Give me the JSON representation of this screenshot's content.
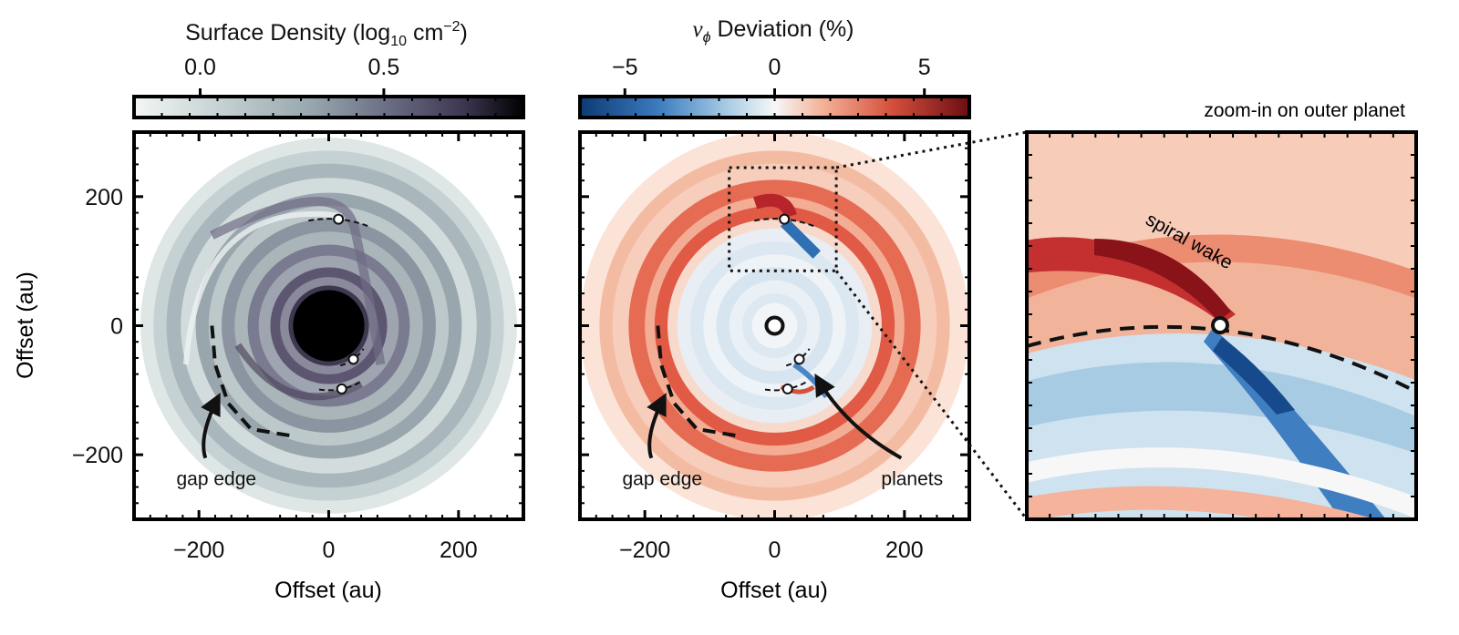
{
  "chart_data": [
    {
      "type": "heatmap",
      "panel": "surface-density",
      "colorbar": {
        "label_main": "Surface Density (log",
        "label_sub": "10",
        "label_unit": " cm",
        "label_exp": "−2",
        "label_close": ")",
        "ticks": [
          {
            "value": 0.0,
            "label": "0.0"
          },
          {
            "value": 0.5,
            "label": "0.5"
          }
        ],
        "range": [
          -0.18,
          0.88
        ],
        "colormap": "bone_r",
        "colors": [
          "#f3f6f5",
          "#c9d5d6",
          "#98a8ae",
          "#6b6e86",
          "#3c3550",
          "#000000"
        ]
      },
      "xlabel": "Offset (au)",
      "ylabel": "Offset (au)",
      "xlim": [
        -300,
        300
      ],
      "ylim": [
        -300,
        300
      ],
      "xticks": [
        {
          "value": -200,
          "label": "−200"
        },
        {
          "value": 0,
          "label": "0"
        },
        {
          "value": 200,
          "label": "200"
        }
      ],
      "yticks": [
        {
          "value": 200,
          "label": "200"
        },
        {
          "value": 0,
          "label": "0"
        },
        {
          "value": -200,
          "label": "−200"
        }
      ],
      "disk_outer_radius_au": 290,
      "central_hole_radius_au": 55,
      "planets": [
        {
          "x": 15,
          "y": 165
        },
        {
          "x": 38,
          "y": -52
        },
        {
          "x": 20,
          "y": -98
        }
      ],
      "gap_edge_spiral": [
        [
          -180,
          0
        ],
        [
          -175,
          -60
        ],
        [
          -155,
          -120
        ],
        [
          -120,
          -160
        ],
        [
          -50,
          -172
        ]
      ],
      "annotation": {
        "label": "gap edge",
        "tip": [
          -170,
          -110
        ],
        "tail": [
          -190,
          -205
        ]
      }
    },
    {
      "type": "heatmap",
      "panel": "velocity-deviation",
      "colorbar": {
        "label_symbol": "v",
        "label_sub": "ϕ",
        "label_rest": " Deviation (%)",
        "ticks": [
          {
            "value": -5,
            "label": "−5"
          },
          {
            "value": 0,
            "label": "0"
          },
          {
            "value": 5,
            "label": "5"
          }
        ],
        "range": [
          -6.5,
          6.5
        ],
        "colormap": "RdBu_r",
        "colors": [
          "#0d3a73",
          "#3b7bbf",
          "#a9cce4",
          "#f7f7f7",
          "#f4b39a",
          "#d6503c",
          "#6b0d12"
        ]
      },
      "xlabel": "Offset (au)",
      "xlim": [
        -300,
        300
      ],
      "ylim": [
        -300,
        300
      ],
      "xticks": [
        {
          "value": -200,
          "label": "−200"
        },
        {
          "value": 0,
          "label": "0"
        },
        {
          "value": 200,
          "label": "200"
        }
      ],
      "star": {
        "x": 0,
        "y": 0
      },
      "planets": [
        {
          "x": 15,
          "y": 165
        },
        {
          "x": 38,
          "y": -52
        },
        {
          "x": 20,
          "y": -98
        }
      ],
      "gap_edge_spiral": [
        [
          -180,
          0
        ],
        [
          -175,
          -60
        ],
        [
          -155,
          -120
        ],
        [
          -120,
          -160
        ],
        [
          -50,
          -172
        ]
      ],
      "annotations": [
        {
          "label": "gap edge",
          "tip": [
            -170,
            -110
          ],
          "tail": [
            -190,
            -205
          ]
        },
        {
          "label": "planets",
          "tip": [
            65,
            -80
          ],
          "tail": [
            195,
            -205
          ]
        }
      ],
      "zoom_box": {
        "xmin": -70,
        "xmax": 95,
        "ymin": 85,
        "ymax": 245
      }
    },
    {
      "type": "heatmap",
      "panel": "zoom-in",
      "title": "zoom-in on outer planet",
      "annotation": "spiral wake",
      "colormap": "RdBu_r"
    }
  ]
}
